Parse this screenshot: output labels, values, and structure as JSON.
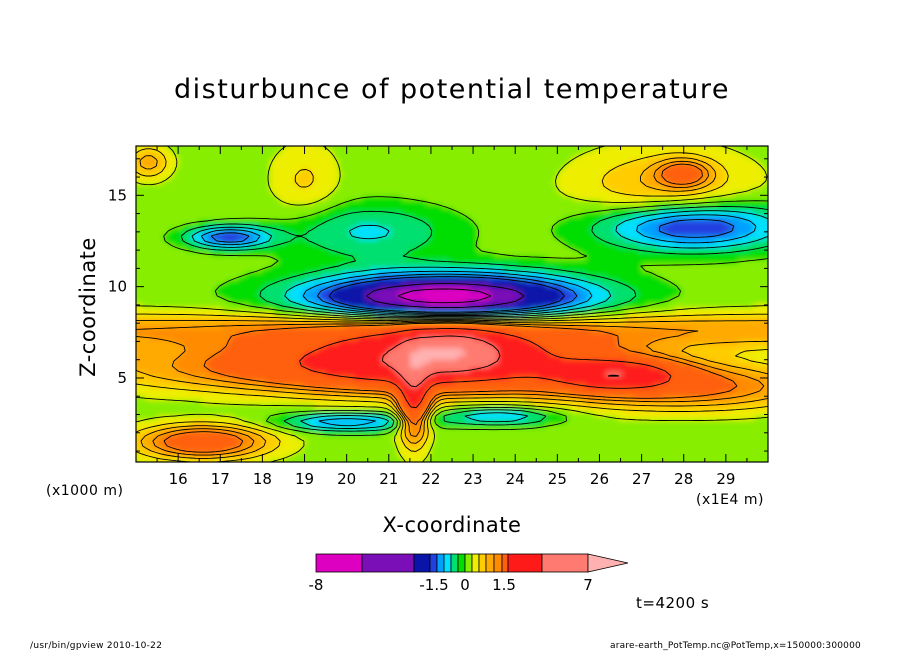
{
  "chart_data": {
    "type": "contour",
    "title": "disturbunce of potential temperature",
    "xlabel": "X-coordinate",
    "ylabel": "Z-coordinate",
    "x_unit": "(x1E4 m)",
    "y_unit": "(x1000 m)",
    "x_ticks": [
      "16",
      "17",
      "18",
      "19",
      "20",
      "21",
      "22",
      "23",
      "24",
      "25",
      "26",
      "27",
      "28",
      "29"
    ],
    "y_ticks": [
      "5",
      "10",
      "15"
    ],
    "xlim": [
      15.0,
      30.0
    ],
    "ylim": [
      0.4,
      17.7
    ],
    "colorbar": {
      "levels": [
        -8,
        -5,
        -3,
        -1.5,
        -1.2,
        -0.9,
        -0.6,
        -0.3,
        0,
        0.3,
        0.6,
        0.9,
        1.2,
        1.5,
        3,
        5,
        7
      ],
      "colors": [
        "#dd00c0",
        "#7a0fb8",
        "#0a14a8",
        "#2040e0",
        "#00a0ff",
        "#00e0ff",
        "#00e070",
        "#00dd00",
        "#88ee00",
        "#eeee00",
        "#ffcc00",
        "#ffaa00",
        "#ff8c00",
        "#ff6010",
        "#ff1a1a",
        "#ff7a70",
        "#ffb0b0"
      ],
      "tick_labels": [
        {
          "text": "-8",
          "value": -8
        },
        {
          "text": "-1.5",
          "value": -1.5
        },
        {
          "text": "0",
          "value": 0
        },
        {
          "text": "1.5",
          "value": 1.5
        },
        {
          "text": "7",
          "value": 7
        }
      ]
    },
    "annotations": {
      "time": "t=4200 s",
      "footer_left": "/usr/bin/gpview   2010-10-22",
      "footer_right": "arare-earth_PotTemp.nc@PotTemp,x=150000:300000"
    }
  }
}
